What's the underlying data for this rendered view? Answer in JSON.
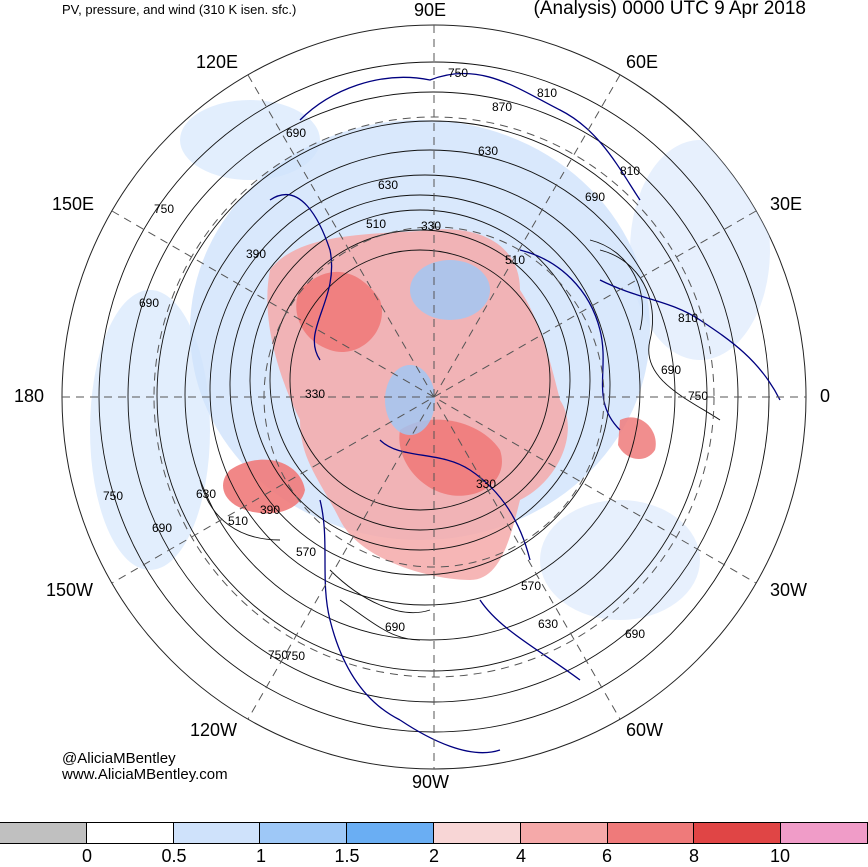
{
  "header": {
    "left_title": "PV, pressure, and wind (310 K isen. sfc.)",
    "right_title": "(Analysis) 0000 UTC 9 Apr 2018"
  },
  "longitude_labels": {
    "top": "90E",
    "bottom": "90W",
    "left": "180",
    "right": "0",
    "upper_left_1": "120E",
    "upper_left_2": "150E",
    "upper_right_1": "60E",
    "upper_right_2": "30E",
    "lower_left_1": "150W",
    "lower_left_2": "120W",
    "lower_right_1": "30W",
    "lower_right_2": "60W"
  },
  "contour_labels": [
    "750",
    "810",
    "870",
    "690",
    "630",
    "810",
    "750",
    "510",
    "630",
    "690",
    "330",
    "510",
    "390",
    "810",
    "690",
    "750",
    "330",
    "690",
    "750",
    "630",
    "390",
    "510",
    "750",
    "690",
    "570",
    "330",
    "570",
    "630",
    "690",
    "750",
    "690"
  ],
  "credits": {
    "handle": "@AliciaMBentley",
    "site": "www.AliciaMBentley.com"
  },
  "colorbar": {
    "colors": [
      "#c0c0c0",
      "#ffffff",
      "#cfe2fb",
      "#9ec8f7",
      "#6aaef3",
      "#f8d6d6",
      "#f5a9a9",
      "#ef7a7a",
      "#e04545",
      "#f09cc8"
    ],
    "ticks": [
      "0",
      "0.5",
      "1",
      "1.5",
      "2",
      "4",
      "6",
      "8",
      "10"
    ]
  }
}
